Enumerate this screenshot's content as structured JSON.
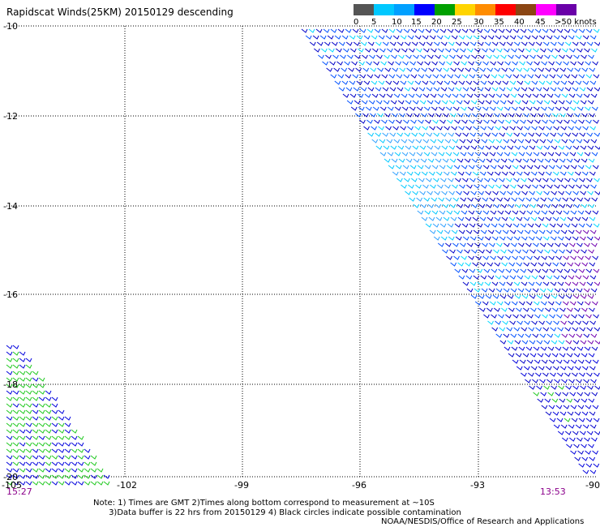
{
  "title": "Rapidscat Winds(25KM) 20150129 descending",
  "legend": {
    "labels": [
      "0",
      "5",
      "10",
      "15",
      "20",
      "25",
      "30",
      "35",
      "40",
      "45",
      ">50 knots"
    ],
    "colors": [
      "#555555",
      "#00c8ff",
      "#00a0ff",
      "#0000ff",
      "#00a000",
      "#ffd400",
      "#ff8c00",
      "#ff0000",
      "#8b4513",
      "#ff00ff",
      "#6a00a8"
    ]
  },
  "axes": {
    "lat_ticks": [
      "-10",
      "-12",
      "-14",
      "-16",
      "-18",
      "-20"
    ],
    "lon_ticks": [
      "-105",
      "-102",
      "-99",
      "-96",
      "-93",
      "-90"
    ],
    "lat_range": [
      -20,
      -10
    ],
    "lon_range": [
      -105,
      -90
    ],
    "grid": "dotted"
  },
  "times": {
    "left": "15:27",
    "right": "13:53"
  },
  "notes": {
    "line1": "Note: 1) Times are GMT 2)Times along bottom correspond to measurement at ~10S",
    "line2": "      3)Data buffer is 22 hrs from 20150129 4) Black circles indicate possible contamination",
    "credit": "NOAA/NESDIS/Office of Research and Applications"
  },
  "map_data": {
    "swaths": [
      {
        "name": "east",
        "dominant_speed_knots": [
          5,
          15
        ],
        "color_range": [
          "#00c8ff",
          "#0000ff"
        ]
      },
      {
        "name": "southwest",
        "dominant_speed_knots": [
          15,
          20
        ],
        "color_range": [
          "#0000ff",
          "#00a000"
        ]
      }
    ]
  }
}
